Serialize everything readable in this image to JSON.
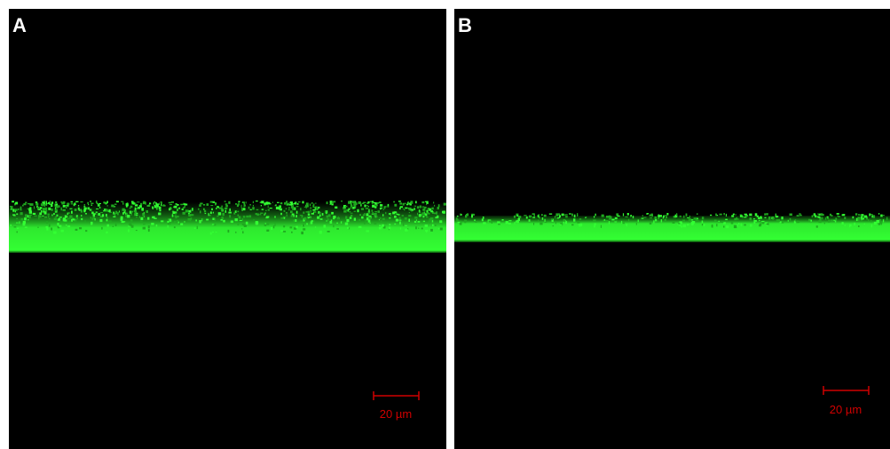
{
  "panels": [
    {
      "label": "A",
      "scale_bar": "20 µm"
    },
    {
      "label": "B",
      "scale_bar": "20 µm"
    }
  ]
}
